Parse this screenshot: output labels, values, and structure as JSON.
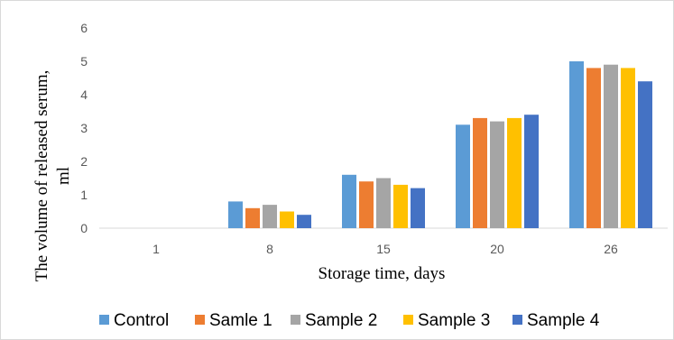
{
  "chart_data": {
    "type": "bar",
    "categories": [
      "1",
      "8",
      "15",
      "20",
      "26"
    ],
    "series": [
      {
        "name": "Control",
        "color": "#5B9BD5",
        "values": [
          0,
          0.8,
          1.6,
          3.1,
          5.0
        ]
      },
      {
        "name": "Samle 1",
        "color": "#ED7D31",
        "values": [
          0,
          0.6,
          1.4,
          3.3,
          4.8
        ]
      },
      {
        "name": "Sample 2",
        "color": "#A5A5A5",
        "values": [
          0,
          0.7,
          1.5,
          3.2,
          4.9
        ]
      },
      {
        "name": "Sample 3",
        "color": "#FFC000",
        "values": [
          0,
          0.5,
          1.3,
          3.3,
          4.8
        ]
      },
      {
        "name": "Sample 4",
        "color": "#4472C4",
        "values": [
          0,
          0.4,
          1.2,
          3.4,
          4.4
        ]
      }
    ],
    "title": "",
    "xlabel": "Storage time, days",
    "ylabel_line1": "The volume of released serum,",
    "ylabel_line2": "ml",
    "ylim": [
      0,
      6
    ],
    "yticks": [
      "0",
      "1",
      "2",
      "3",
      "4",
      "5",
      "6"
    ],
    "grid": false,
    "legend_position": "bottom"
  }
}
